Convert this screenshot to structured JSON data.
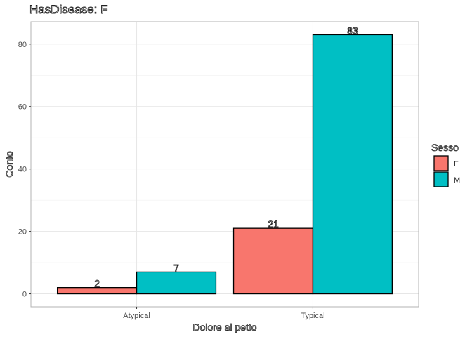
{
  "chart_data": {
    "type": "bar",
    "title": "HasDisease: F",
    "xlabel": "Dolore al petto",
    "ylabel": "Conto",
    "categories": [
      "Atypical",
      "Typical"
    ],
    "series": [
      {
        "name": "F",
        "values": [
          2,
          21
        ],
        "color": "#F8766D"
      },
      {
        "name": "M",
        "values": [
          7,
          83
        ],
        "color": "#00BFC4"
      }
    ],
    "ylim": [
      -4.15,
      87.15
    ],
    "yticks": [
      0,
      20,
      40,
      60,
      80
    ],
    "grid": true,
    "legend": {
      "title": "Sesso",
      "position": "right"
    }
  }
}
